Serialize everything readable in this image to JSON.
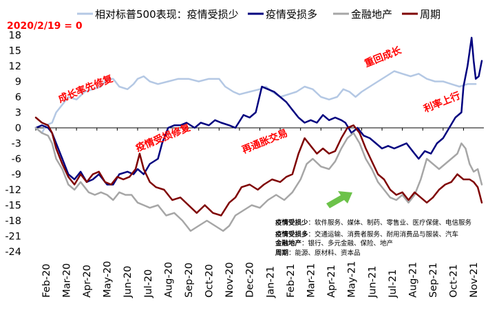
{
  "chart_data": {
    "type": "line",
    "title": "",
    "reference_note": "2020/2/19 = 0",
    "xlabel": "",
    "ylabel": "",
    "ylim": [
      -24,
      18
    ],
    "yticks": [
      18,
      15,
      12,
      9,
      6,
      3,
      0,
      -3,
      -6,
      -9,
      -12,
      -15,
      -18,
      -21,
      -24
    ],
    "xticks": [
      "Feb-20",
      "Mar-20",
      "Apr-20",
      "May-20",
      "Jun-20",
      "Jul-20",
      "Aug-20",
      "Sep-20",
      "Oct-20",
      "Nov-20",
      "Dec-20",
      "Jan-21",
      "Feb-21",
      "Mar-21",
      "Apr-21",
      "May-21",
      "Jun-21",
      "Jul-21",
      "Aug-21",
      "Sep-21",
      "Oct-21",
      "Nov-21"
    ],
    "x_months": [
      "2020-02",
      "2020-03",
      "2020-04",
      "2020-05",
      "2020-06",
      "2020-07",
      "2020-08",
      "2020-09",
      "2020-10",
      "2020-11",
      "2020-12",
      "2021-01",
      "2021-02",
      "2021-03",
      "2021-04",
      "2021-05",
      "2021-06",
      "2021-07",
      "2021-08",
      "2021-09",
      "2021-10",
      "2021-11"
    ],
    "series": [
      {
        "name": "相对标普500表现：疫情受损少",
        "color": "#b4c8e4",
        "width": 2.5,
        "values": [
          [
            0.0,
            0
          ],
          [
            0.3,
            -1
          ],
          [
            0.5,
            0.5
          ],
          [
            0.8,
            1
          ],
          [
            1.0,
            3
          ],
          [
            1.3,
            4.5
          ],
          [
            1.6,
            6
          ],
          [
            2.0,
            5.5
          ],
          [
            2.4,
            7
          ],
          [
            2.8,
            7.5
          ],
          [
            3.2,
            8
          ],
          [
            3.5,
            9.5
          ],
          [
            3.8,
            9.5
          ],
          [
            4.1,
            8
          ],
          [
            4.5,
            7.5
          ],
          [
            4.8,
            8.5
          ],
          [
            5.0,
            9.5
          ],
          [
            5.3,
            10
          ],
          [
            5.6,
            9
          ],
          [
            6.0,
            8.5
          ],
          [
            6.5,
            9
          ],
          [
            7.0,
            9.5
          ],
          [
            7.5,
            9.5
          ],
          [
            8.0,
            9
          ],
          [
            8.5,
            9.5
          ],
          [
            9.0,
            9.5
          ],
          [
            9.3,
            8
          ],
          [
            9.7,
            7
          ],
          [
            10.0,
            6.5
          ],
          [
            10.5,
            7
          ],
          [
            11.0,
            7.5
          ],
          [
            11.3,
            8
          ],
          [
            11.6,
            7
          ],
          [
            12.0,
            6
          ],
          [
            12.4,
            6.5
          ],
          [
            12.8,
            7
          ],
          [
            13.2,
            8
          ],
          [
            13.6,
            7.5
          ],
          [
            14.0,
            6
          ],
          [
            14.4,
            5.5
          ],
          [
            14.8,
            6
          ],
          [
            15.1,
            7.5
          ],
          [
            15.4,
            7
          ],
          [
            15.7,
            6
          ],
          [
            16.0,
            7
          ],
          [
            16.4,
            8
          ],
          [
            16.8,
            9
          ],
          [
            17.2,
            10
          ],
          [
            17.6,
            11
          ],
          [
            18.0,
            10.5
          ],
          [
            18.4,
            10
          ],
          [
            18.8,
            10.5
          ],
          [
            19.2,
            9.5
          ],
          [
            19.6,
            9
          ],
          [
            20.0,
            9
          ],
          [
            20.4,
            8.5
          ],
          [
            20.8,
            8
          ],
          [
            21.2,
            8.5
          ],
          [
            21.6,
            8.5
          ]
        ]
      },
      {
        "name": "疫情受损多",
        "color": "#00007f",
        "width": 2.5,
        "values": [
          [
            0.0,
            0
          ],
          [
            0.3,
            0.5
          ],
          [
            0.6,
            0
          ],
          [
            0.8,
            -1
          ],
          [
            1.0,
            -3
          ],
          [
            1.3,
            -6
          ],
          [
            1.6,
            -9
          ],
          [
            1.9,
            -10
          ],
          [
            2.2,
            -8.5
          ],
          [
            2.5,
            -10.5
          ],
          [
            2.8,
            -10
          ],
          [
            3.1,
            -9
          ],
          [
            3.5,
            -11
          ],
          [
            3.8,
            -11
          ],
          [
            4.1,
            -9
          ],
          [
            4.5,
            -8.5
          ],
          [
            4.8,
            -9
          ],
          [
            5.0,
            -8
          ],
          [
            5.3,
            -9
          ],
          [
            5.6,
            -7
          ],
          [
            6.0,
            -6
          ],
          [
            6.2,
            -3
          ],
          [
            6.5,
            0
          ],
          [
            6.8,
            0.5
          ],
          [
            7.1,
            0.5
          ],
          [
            7.4,
            1
          ],
          [
            7.8,
            0
          ],
          [
            8.1,
            1
          ],
          [
            8.5,
            0.5
          ],
          [
            8.8,
            1.5
          ],
          [
            9.1,
            1
          ],
          [
            9.5,
            0.5
          ],
          [
            9.8,
            0
          ],
          [
            10.2,
            2.5
          ],
          [
            10.5,
            2
          ],
          [
            10.8,
            3
          ],
          [
            11.1,
            8
          ],
          [
            11.4,
            7.5
          ],
          [
            11.7,
            7
          ],
          [
            12.0,
            6
          ],
          [
            12.3,
            5
          ],
          [
            12.6,
            3.5
          ],
          [
            12.9,
            2
          ],
          [
            13.2,
            1
          ],
          [
            13.5,
            1.5
          ],
          [
            13.8,
            1
          ],
          [
            14.1,
            2.5
          ],
          [
            14.4,
            1.5
          ],
          [
            14.7,
            2
          ],
          [
            15.0,
            1.5
          ],
          [
            15.2,
            1
          ],
          [
            15.5,
            -1
          ],
          [
            15.8,
            0
          ],
          [
            16.1,
            -1.5
          ],
          [
            16.4,
            -2
          ],
          [
            16.7,
            -3
          ],
          [
            17.0,
            -4
          ],
          [
            17.3,
            -3.5
          ],
          [
            17.6,
            -4
          ],
          [
            17.9,
            -3.5
          ],
          [
            18.2,
            -3
          ],
          [
            18.5,
            -4.5
          ],
          [
            18.8,
            -6
          ],
          [
            19.1,
            -4.5
          ],
          [
            19.4,
            -5
          ],
          [
            19.7,
            -3
          ],
          [
            20.0,
            -2
          ],
          [
            20.3,
            0
          ],
          [
            20.6,
            2
          ],
          [
            20.9,
            3
          ],
          [
            21.0,
            8
          ],
          [
            21.2,
            12
          ],
          [
            21.4,
            17.5
          ],
          [
            21.5,
            13
          ],
          [
            21.6,
            9.5
          ],
          [
            21.75,
            10
          ],
          [
            21.9,
            13
          ]
        ]
      },
      {
        "name": "金融地产",
        "color": "#a6a6a6",
        "width": 2.5,
        "values": [
          [
            0.0,
            0
          ],
          [
            0.3,
            -1
          ],
          [
            0.6,
            -1.5
          ],
          [
            0.8,
            -3
          ],
          [
            1.0,
            -6
          ],
          [
            1.3,
            -8
          ],
          [
            1.6,
            -11
          ],
          [
            1.9,
            -12
          ],
          [
            2.2,
            -10.5
          ],
          [
            2.6,
            -12.5
          ],
          [
            2.9,
            -13
          ],
          [
            3.2,
            -12.5
          ],
          [
            3.5,
            -13
          ],
          [
            3.8,
            -14
          ],
          [
            4.1,
            -12.5
          ],
          [
            4.4,
            -13
          ],
          [
            4.7,
            -13
          ],
          [
            5.0,
            -14.5
          ],
          [
            5.3,
            -15
          ],
          [
            5.6,
            -15.5
          ],
          [
            6.0,
            -15
          ],
          [
            6.4,
            -17
          ],
          [
            6.8,
            -16.5
          ],
          [
            7.2,
            -18
          ],
          [
            7.6,
            -20
          ],
          [
            8.0,
            -19
          ],
          [
            8.4,
            -18
          ],
          [
            8.8,
            -19
          ],
          [
            9.2,
            -20
          ],
          [
            9.5,
            -19
          ],
          [
            9.8,
            -17
          ],
          [
            10.2,
            -16
          ],
          [
            10.6,
            -15
          ],
          [
            11.0,
            -15.5
          ],
          [
            11.4,
            -14
          ],
          [
            11.8,
            -13
          ],
          [
            12.2,
            -14
          ],
          [
            12.6,
            -12.5
          ],
          [
            13.0,
            -10
          ],
          [
            13.3,
            -7
          ],
          [
            13.6,
            -6
          ],
          [
            14.0,
            -7.5
          ],
          [
            14.4,
            -8
          ],
          [
            14.7,
            -6.5
          ],
          [
            15.0,
            -4
          ],
          [
            15.3,
            -2
          ],
          [
            15.6,
            -1
          ],
          [
            15.9,
            -3
          ],
          [
            16.2,
            -6
          ],
          [
            16.5,
            -8
          ],
          [
            16.8,
            -10.5
          ],
          [
            17.1,
            -12
          ],
          [
            17.4,
            -13.5
          ],
          [
            17.7,
            -14
          ],
          [
            18.0,
            -13
          ],
          [
            18.3,
            -14.5
          ],
          [
            18.6,
            -13
          ],
          [
            18.9,
            -10
          ],
          [
            19.2,
            -6
          ],
          [
            19.5,
            -7
          ],
          [
            19.8,
            -8
          ],
          [
            20.1,
            -7
          ],
          [
            20.4,
            -6
          ],
          [
            20.7,
            -5
          ],
          [
            20.9,
            -3
          ],
          [
            21.1,
            -4
          ],
          [
            21.3,
            -7
          ],
          [
            21.5,
            -8.5
          ],
          [
            21.7,
            -8
          ],
          [
            21.9,
            -11
          ]
        ]
      },
      {
        "name": "周期",
        "color": "#7f0000",
        "width": 2.5,
        "values": [
          [
            0.0,
            2
          ],
          [
            0.3,
            1
          ],
          [
            0.6,
            0.5
          ],
          [
            0.8,
            -1
          ],
          [
            1.0,
            -4
          ],
          [
            1.3,
            -7
          ],
          [
            1.6,
            -9.5
          ],
          [
            1.9,
            -11
          ],
          [
            2.2,
            -9
          ],
          [
            2.5,
            -10.5
          ],
          [
            2.8,
            -9
          ],
          [
            3.1,
            -8.5
          ],
          [
            3.4,
            -10.5
          ],
          [
            3.7,
            -11
          ],
          [
            4.0,
            -9.5
          ],
          [
            4.3,
            -10
          ],
          [
            4.6,
            -9.5
          ],
          [
            4.9,
            -8
          ],
          [
            5.1,
            -5
          ],
          [
            5.3,
            -8
          ],
          [
            5.6,
            -10.5
          ],
          [
            5.9,
            -11.5
          ],
          [
            6.3,
            -12
          ],
          [
            6.7,
            -14
          ],
          [
            7.1,
            -13.5
          ],
          [
            7.5,
            -15
          ],
          [
            7.9,
            -16.5
          ],
          [
            8.3,
            -15
          ],
          [
            8.7,
            -16.5
          ],
          [
            9.1,
            -17
          ],
          [
            9.5,
            -14.5
          ],
          [
            9.8,
            -13.5
          ],
          [
            10.1,
            -11.5
          ],
          [
            10.5,
            -11
          ],
          [
            10.9,
            -12
          ],
          [
            11.2,
            -11
          ],
          [
            11.6,
            -10
          ],
          [
            12.0,
            -10.5
          ],
          [
            12.3,
            -9.5
          ],
          [
            12.6,
            -9
          ],
          [
            12.9,
            -5
          ],
          [
            13.2,
            -2
          ],
          [
            13.5,
            -3.5
          ],
          [
            13.8,
            -5
          ],
          [
            14.1,
            -4
          ],
          [
            14.4,
            -5
          ],
          [
            14.7,
            -4.5
          ],
          [
            15.0,
            -2
          ],
          [
            15.3,
            0
          ],
          [
            15.6,
            0.5
          ],
          [
            15.9,
            -1
          ],
          [
            16.2,
            -4
          ],
          [
            16.5,
            -6.5
          ],
          [
            16.8,
            -9
          ],
          [
            17.1,
            -10
          ],
          [
            17.4,
            -12
          ],
          [
            17.7,
            -13
          ],
          [
            18.0,
            -12.5
          ],
          [
            18.3,
            -14
          ],
          [
            18.6,
            -12.5
          ],
          [
            18.9,
            -13.5
          ],
          [
            19.2,
            -14.5
          ],
          [
            19.5,
            -13.5
          ],
          [
            19.8,
            -12
          ],
          [
            20.1,
            -11
          ],
          [
            20.4,
            -10.5
          ],
          [
            20.7,
            -9
          ],
          [
            21.0,
            -10
          ],
          [
            21.3,
            -10
          ],
          [
            21.5,
            -10.5
          ],
          [
            21.7,
            -11.5
          ],
          [
            21.8,
            -13
          ],
          [
            21.9,
            -14.5
          ]
        ]
      }
    ],
    "annotations": [
      {
        "text": "成长率先修复",
        "x": 2.5,
        "y": 7
      },
      {
        "text": "疫情受损修复",
        "x": 6.3,
        "y": -2.5
      },
      {
        "text": "重回成长",
        "x": 17.1,
        "y": 13.2
      },
      {
        "text": "再通胀交易",
        "x": 11.3,
        "y": -3.2
      },
      {
        "text": "利率上行",
        "x": 20.0,
        "y": 4.4
      }
    ],
    "notes": [
      {
        "label": "疫情受损少",
        "text": "：软件服务、媒体、制药、零售业、医疗保健、电信服务"
      },
      {
        "label": "疫情受损多",
        "text": "：交通运输、消费者服务、耐用消费品与服装、汽车"
      },
      {
        "label": "金融地产",
        "text": "：银行、多元金融、保险、地产"
      },
      {
        "label": "周期",
        "text": "：能源、原材料、资本品"
      }
    ]
  }
}
